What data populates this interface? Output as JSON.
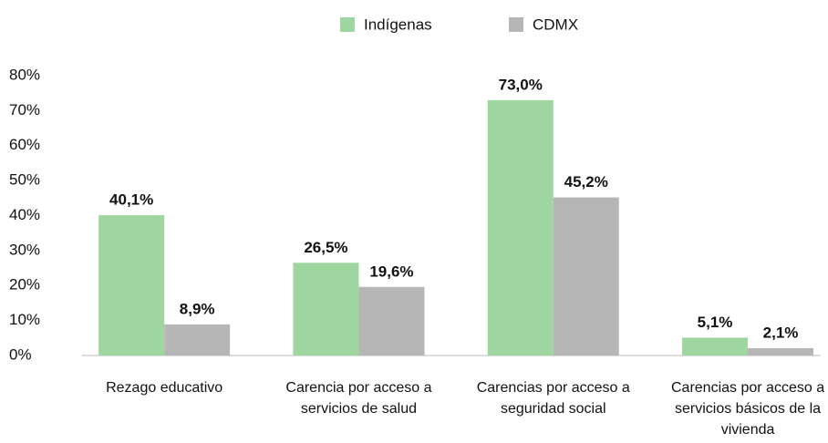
{
  "chart_data": {
    "type": "bar",
    "categories": [
      "Rezago educativo",
      "Carencia por acceso a servicios de salud",
      "Carencias por acceso a seguridad social",
      "Carencias por acceso a servicios básicos de la vivienda"
    ],
    "series": [
      {
        "name": "Indígenas",
        "color": "#9fd6a0",
        "values": [
          40.1,
          26.5,
          73.0,
          5.1
        ],
        "value_labels": [
          "40,1%",
          "26,5%",
          "73,0%",
          "5,1%"
        ]
      },
      {
        "name": "CDMX",
        "color": "#b6b6b6",
        "values": [
          8.9,
          19.6,
          45.2,
          2.1
        ],
        "value_labels": [
          "8,9%",
          "19,6%",
          "45,2%",
          "2,1%"
        ]
      }
    ],
    "ylim": [
      0,
      80
    ],
    "yticks": [
      {
        "value": 0,
        "label": "0%"
      },
      {
        "value": 10,
        "label": "10%"
      },
      {
        "value": 20,
        "label": "20%"
      },
      {
        "value": 30,
        "label": "30%"
      },
      {
        "value": 40,
        "label": "40%"
      },
      {
        "value": 50,
        "label": "50%"
      },
      {
        "value": 60,
        "label": "60%"
      },
      {
        "value": 70,
        "label": "70%"
      },
      {
        "value": 80,
        "label": "80%"
      }
    ],
    "grid": false,
    "legend": "top"
  }
}
